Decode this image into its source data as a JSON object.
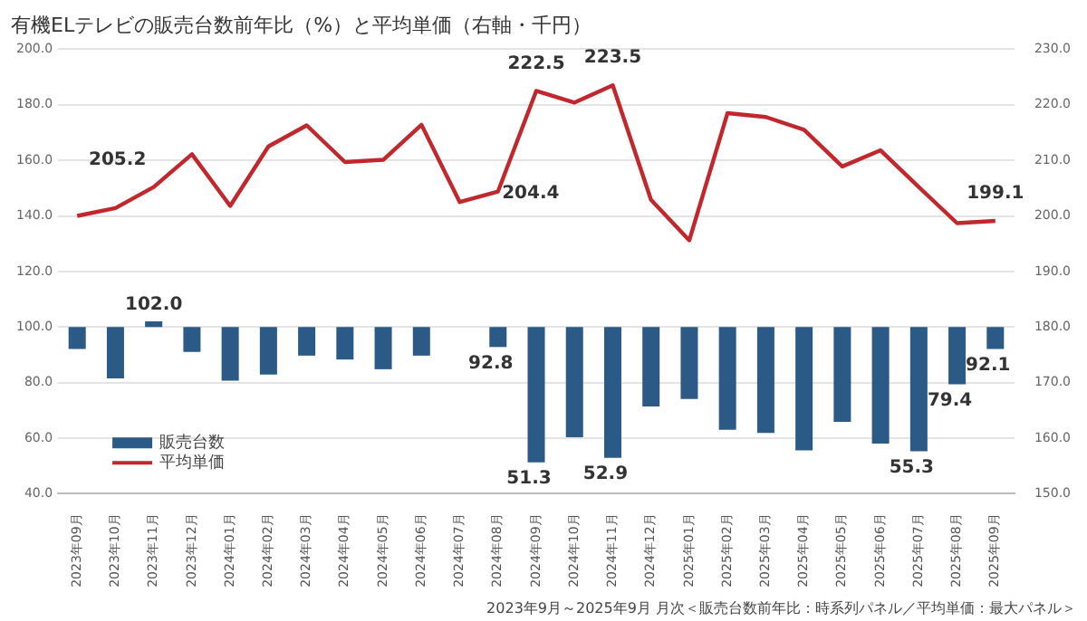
{
  "chart_data": {
    "type": "bar",
    "title": "有機ELテレビの販売台数前年比（%）と平均単価（右軸・千円）",
    "categories": [
      "2023年09月",
      "2023年10月",
      "2023年11月",
      "2023年12月",
      "2024年01月",
      "2024年02月",
      "2024年03月",
      "2024年04月",
      "2024年05月",
      "2024年06月",
      "2024年07月",
      "2024年08月",
      "2024年09月",
      "2024年10月",
      "2024年11月",
      "2024年12月",
      "2025年01月",
      "2025年02月",
      "2025年03月",
      "2025年04月",
      "2025年05月",
      "2025年06月",
      "2025年07月",
      "2025年08月",
      "2025年09月"
    ],
    "series": [
      {
        "name": "販売台数",
        "color": "#2a5a85",
        "base": [
          100,
          100,
          100,
          100,
          100,
          100,
          100,
          100,
          100,
          100,
          null,
          100,
          100,
          100,
          100,
          100,
          100,
          100,
          100,
          100,
          100,
          100,
          100,
          100,
          100
        ],
        "values": [
          -7.9,
          -18.5,
          2.0,
          -9.0,
          -19.3,
          -17.1,
          -10.3,
          -11.7,
          -15.2,
          -10.3,
          null,
          -7.2,
          -48.7,
          -39.7,
          -47.1,
          -28.6,
          -25.9,
          -37.0,
          -38.1,
          -44.4,
          -34.1,
          -42.0,
          -44.7,
          -20.6,
          -7.9
        ],
        "value_labels": [
          null,
          null,
          "102.0",
          null,
          null,
          null,
          null,
          null,
          null,
          null,
          null,
          "92.8",
          "51.3",
          null,
          "52.9",
          null,
          null,
          null,
          null,
          null,
          null,
          null,
          "55.3",
          "79.4",
          "92.1"
        ]
      },
      {
        "name": "平均単価",
        "type": "line",
        "axis": "y2",
        "color": "#c0282d",
        "values": [
          200.0,
          201.4,
          205.2,
          211.1,
          201.8,
          212.5,
          216.3,
          209.7,
          210.1,
          216.4,
          202.5,
          204.4,
          222.5,
          220.4,
          223.5,
          202.9,
          195.6,
          218.5,
          217.8,
          215.5,
          208.9,
          211.8,
          205.2,
          198.7,
          199.1
        ],
        "value_labels": [
          null,
          null,
          "205.2",
          null,
          null,
          null,
          null,
          null,
          null,
          null,
          null,
          "204.4",
          "222.5",
          null,
          "223.5",
          null,
          null,
          null,
          null,
          null,
          null,
          null,
          null,
          null,
          "199.1"
        ]
      }
    ],
    "ylim": [
      40,
      200
    ],
    "yticks": [
      {
        "value": 40,
        "label": "40.0"
      },
      {
        "value": 60,
        "label": "60.0"
      },
      {
        "value": 80,
        "label": "80.0"
      },
      {
        "value": 100,
        "label": "100.0"
      },
      {
        "value": 120,
        "label": "120.0"
      },
      {
        "value": 140,
        "label": "140.0"
      },
      {
        "value": 160,
        "label": "160.0"
      },
      {
        "value": 180,
        "label": "180.0"
      },
      {
        "value": 200,
        "label": "200.0"
      }
    ],
    "y2lim": [
      150,
      230
    ],
    "y2ticks": [
      {
        "value": 150,
        "label": "150.0"
      },
      {
        "value": 160,
        "label": "160.0"
      },
      {
        "value": 170,
        "label": "170.0"
      },
      {
        "value": 180,
        "label": "180.0"
      },
      {
        "value": 190,
        "label": "190.0"
      },
      {
        "value": 200,
        "label": "200.0"
      },
      {
        "value": 210,
        "label": "210.0"
      },
      {
        "value": 220,
        "label": "220.0"
      },
      {
        "value": 230,
        "label": "230.0"
      }
    ],
    "grid": "y",
    "legend": "bottom left",
    "marker": "none",
    "line_style": "solid",
    "annotations": [
      "2023年9月～2025年9月 月次＜販売台数前年比：時系列パネル／平均単価：最大パネル＞"
    ]
  }
}
